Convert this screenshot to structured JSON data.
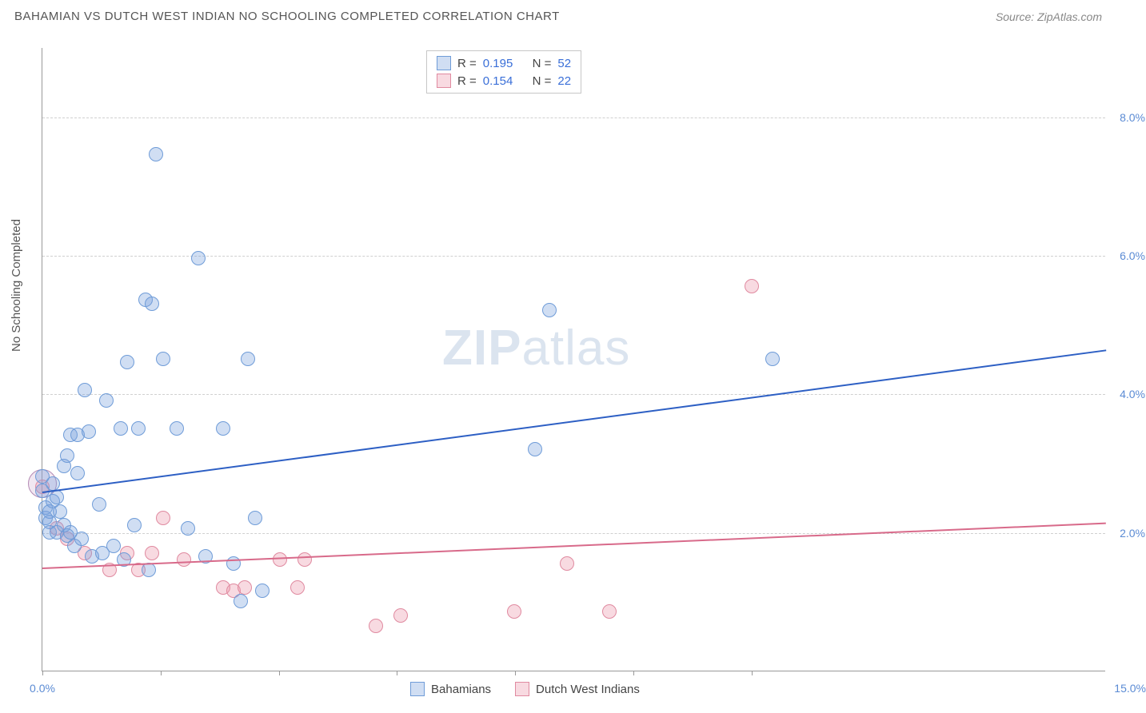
{
  "header": {
    "title": "BAHAMIAN VS DUTCH WEST INDIAN NO SCHOOLING COMPLETED CORRELATION CHART",
    "source": "Source: ZipAtlas.com"
  },
  "axes": {
    "y_label": "No Schooling Completed",
    "x_min": 0,
    "x_max": 15,
    "y_min": 0,
    "y_max": 9,
    "y_ticks": [
      2,
      4,
      6,
      8
    ],
    "y_tick_labels": [
      "2.0%",
      "4.0%",
      "6.0%",
      "8.0%"
    ],
    "x_ticks": [
      0,
      1.67,
      3.34,
      5.0,
      6.67,
      8.34,
      10.0
    ],
    "x_min_label": "0.0%",
    "x_max_label": "15.0%"
  },
  "series": {
    "a": {
      "label": "Bahamians",
      "fill": "rgba(120,160,220,0.35)",
      "stroke": "#6f9cd8",
      "line_color": "#2d5fc4",
      "trend": {
        "x1": 0,
        "y1": 2.6,
        "x2": 15,
        "y2": 4.65
      },
      "r_label": "R = ",
      "r_val": "0.195",
      "n_label": "N = ",
      "n_val": "52",
      "points": [
        [
          0.0,
          2.8
        ],
        [
          0.0,
          2.6
        ],
        [
          0.05,
          2.2
        ],
        [
          0.05,
          2.35
        ],
        [
          0.1,
          2.3
        ],
        [
          0.1,
          2.15
        ],
        [
          0.1,
          2.0
        ],
        [
          0.15,
          2.45
        ],
        [
          0.15,
          2.7
        ],
        [
          0.2,
          2.5
        ],
        [
          0.2,
          2.0
        ],
        [
          0.25,
          2.3
        ],
        [
          0.3,
          2.95
        ],
        [
          0.3,
          2.1
        ],
        [
          0.35,
          3.1
        ],
        [
          0.35,
          1.95
        ],
        [
          0.4,
          3.4
        ],
        [
          0.4,
          2.0
        ],
        [
          0.45,
          1.8
        ],
        [
          0.5,
          3.4
        ],
        [
          0.5,
          2.85
        ],
        [
          0.55,
          1.9
        ],
        [
          0.6,
          4.05
        ],
        [
          0.65,
          3.45
        ],
        [
          0.7,
          1.65
        ],
        [
          0.8,
          2.4
        ],
        [
          0.85,
          1.7
        ],
        [
          0.9,
          3.9
        ],
        [
          1.0,
          1.8
        ],
        [
          1.1,
          3.5
        ],
        [
          1.15,
          1.6
        ],
        [
          1.2,
          4.45
        ],
        [
          1.3,
          2.1
        ],
        [
          1.35,
          3.5
        ],
        [
          1.45,
          5.35
        ],
        [
          1.5,
          1.45
        ],
        [
          1.55,
          5.3
        ],
        [
          1.6,
          7.45
        ],
        [
          1.7,
          4.5
        ],
        [
          1.9,
          3.5
        ],
        [
          2.05,
          2.05
        ],
        [
          2.2,
          5.95
        ],
        [
          2.3,
          1.65
        ],
        [
          2.55,
          3.5
        ],
        [
          2.7,
          1.55
        ],
        [
          2.8,
          1.0
        ],
        [
          2.9,
          4.5
        ],
        [
          3.0,
          2.2
        ],
        [
          3.1,
          1.15
        ],
        [
          6.95,
          3.2
        ],
        [
          7.15,
          5.2
        ],
        [
          10.3,
          4.5
        ]
      ]
    },
    "b": {
      "label": "Dutch West Indians",
      "fill": "rgba(235,150,170,0.35)",
      "stroke": "#e08aa0",
      "line_color": "#d86a8a",
      "trend": {
        "x1": 0,
        "y1": 1.5,
        "x2": 15,
        "y2": 2.15
      },
      "r_label": "R = ",
      "r_val": "0.154",
      "n_label": "N = ",
      "n_val": "22",
      "points": [
        [
          0.0,
          2.65
        ],
        [
          0.2,
          2.05
        ],
        [
          0.35,
          1.9
        ],
        [
          0.6,
          1.7
        ],
        [
          0.95,
          1.45
        ],
        [
          1.2,
          1.7
        ],
        [
          1.35,
          1.45
        ],
        [
          1.55,
          1.7
        ],
        [
          1.7,
          2.2
        ],
        [
          2.0,
          1.6
        ],
        [
          2.55,
          1.2
        ],
        [
          2.7,
          1.15
        ],
        [
          2.85,
          1.2
        ],
        [
          3.35,
          1.6
        ],
        [
          3.6,
          1.2
        ],
        [
          3.7,
          1.6
        ],
        [
          4.7,
          0.65
        ],
        [
          5.05,
          0.8
        ],
        [
          6.65,
          0.85
        ],
        [
          7.4,
          1.55
        ],
        [
          8.0,
          0.85
        ],
        [
          10.0,
          5.55
        ]
      ]
    }
  },
  "watermark": {
    "a": "ZIP",
    "b": "atlas"
  },
  "marker_radius": 9,
  "big_marker_radius": 18
}
